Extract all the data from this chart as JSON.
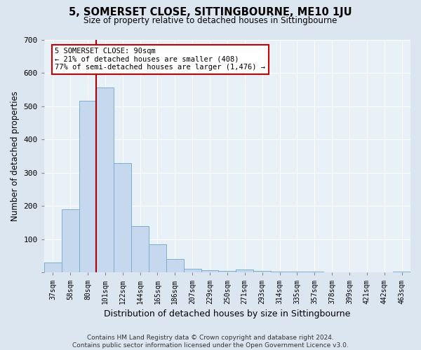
{
  "title": "5, SOMERSET CLOSE, SITTINGBOURNE, ME10 1JU",
  "subtitle": "Size of property relative to detached houses in Sittingbourne",
  "xlabel": "Distribution of detached houses by size in Sittingbourne",
  "ylabel": "Number of detached properties",
  "categories": [
    "37sqm",
    "58sqm",
    "80sqm",
    "101sqm",
    "122sqm",
    "144sqm",
    "165sqm",
    "186sqm",
    "207sqm",
    "229sqm",
    "250sqm",
    "271sqm",
    "293sqm",
    "314sqm",
    "335sqm",
    "357sqm",
    "378sqm",
    "399sqm",
    "421sqm",
    "442sqm",
    "463sqm"
  ],
  "values": [
    30,
    190,
    515,
    555,
    328,
    140,
    85,
    40,
    12,
    8,
    5,
    10,
    5,
    3,
    2,
    2,
    1,
    1,
    1,
    1,
    2
  ],
  "bar_color": "#c5d8ee",
  "bar_edge_color": "#7aafd4",
  "annotation_label": "5 SOMERSET CLOSE: 90sqm",
  "annotation_smaller": "← 21% of detached houses are smaller (408)",
  "annotation_larger": "77% of semi-detached houses are larger (1,476) →",
  "annotation_box_facecolor": "#ffffff",
  "annotation_box_edgecolor": "#cc0000",
  "line_color": "#aa0000",
  "ylim": [
    0,
    700
  ],
  "yticks": [
    0,
    100,
    200,
    300,
    400,
    500,
    600,
    700
  ],
  "footer": "Contains HM Land Registry data © Crown copyright and database right 2024.\nContains public sector information licensed under the Open Government Licence v3.0.",
  "background_color": "#dce6f0",
  "plot_background": "#e8f0f8"
}
